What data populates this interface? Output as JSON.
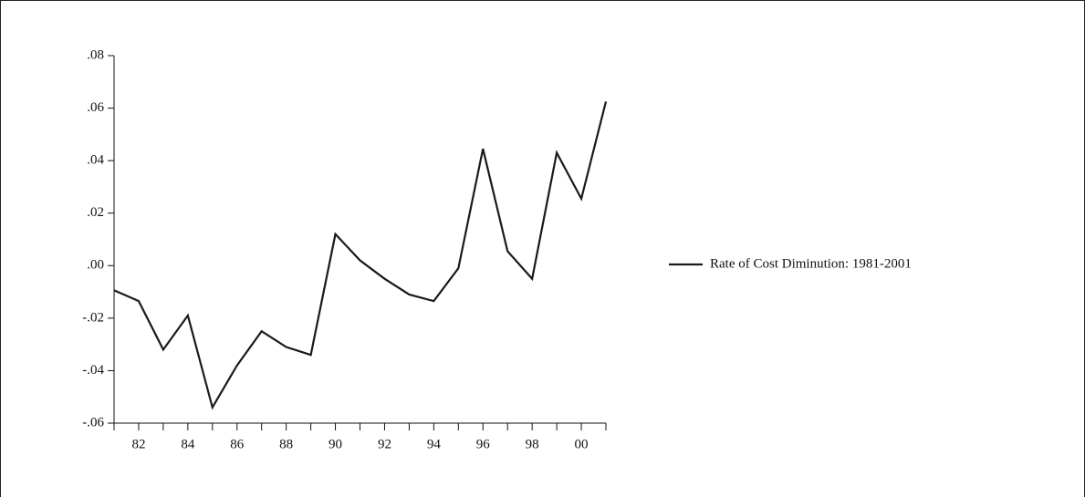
{
  "chart_data": {
    "type": "line",
    "categories": [
      null,
      "82",
      null,
      "84",
      null,
      "86",
      null,
      "88",
      null,
      "90",
      null,
      "92",
      null,
      "94",
      null,
      "96",
      null,
      "98",
      null,
      "00",
      null
    ],
    "series": [
      {
        "name": "Rate of Cost Diminution: 1981-2001",
        "color": "#1a1a1a",
        "values": [
          -0.0094,
          -0.0135,
          -0.032,
          -0.019,
          -0.054,
          -0.038,
          -0.025,
          -0.031,
          -0.034,
          0.012,
          0.002,
          -0.005,
          -0.011,
          -0.0135,
          -0.001,
          0.0445,
          0.0055,
          -0.005,
          0.043,
          0.0255,
          0.0625
        ]
      }
    ],
    "ylim": [
      -0.06,
      0.08
    ],
    "yticks": [
      {
        "value": -0.06,
        "label": "-.06"
      },
      {
        "value": -0.04,
        "label": "-.04"
      },
      {
        "value": -0.02,
        "label": "-.02"
      },
      {
        "value": 0,
        "label": ".00"
      },
      {
        "value": 0.02,
        "label": ".02"
      },
      {
        "value": 0.04,
        "label": ".04"
      },
      {
        "value": 0.06,
        "label": ".06"
      },
      {
        "value": 0.08,
        "label": ".08"
      }
    ],
    "legend": "right"
  }
}
